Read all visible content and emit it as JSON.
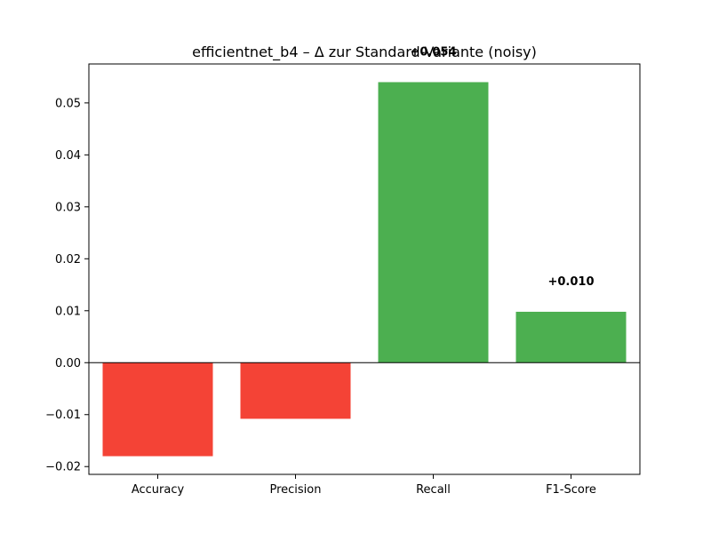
{
  "chart_data": {
    "type": "bar",
    "title": "efficientnet_b4 – Δ zur Standard-Variante (noisy)",
    "xlabel": "",
    "ylabel": "",
    "categories": [
      "Accuracy",
      "Precision",
      "Recall",
      "F1-Score"
    ],
    "values": [
      -0.018,
      -0.0108,
      0.054,
      0.0098
    ],
    "data_labels": [
      "",
      "",
      "+0.054",
      "+0.010"
    ],
    "bar_colors": [
      "#f44336",
      "#f44336",
      "#4caf50",
      "#4caf50"
    ],
    "ylim": [
      -0.0215,
      0.0575
    ],
    "yticks": [
      -0.02,
      -0.01,
      0.0,
      0.01,
      0.02,
      0.03,
      0.04,
      0.05
    ],
    "ytick_labels": [
      "−0.02",
      "−0.01",
      "0.00",
      "0.01",
      "0.02",
      "0.03",
      "0.04",
      "0.05"
    ],
    "zero_line": true,
    "grid": false,
    "legend": "none"
  }
}
